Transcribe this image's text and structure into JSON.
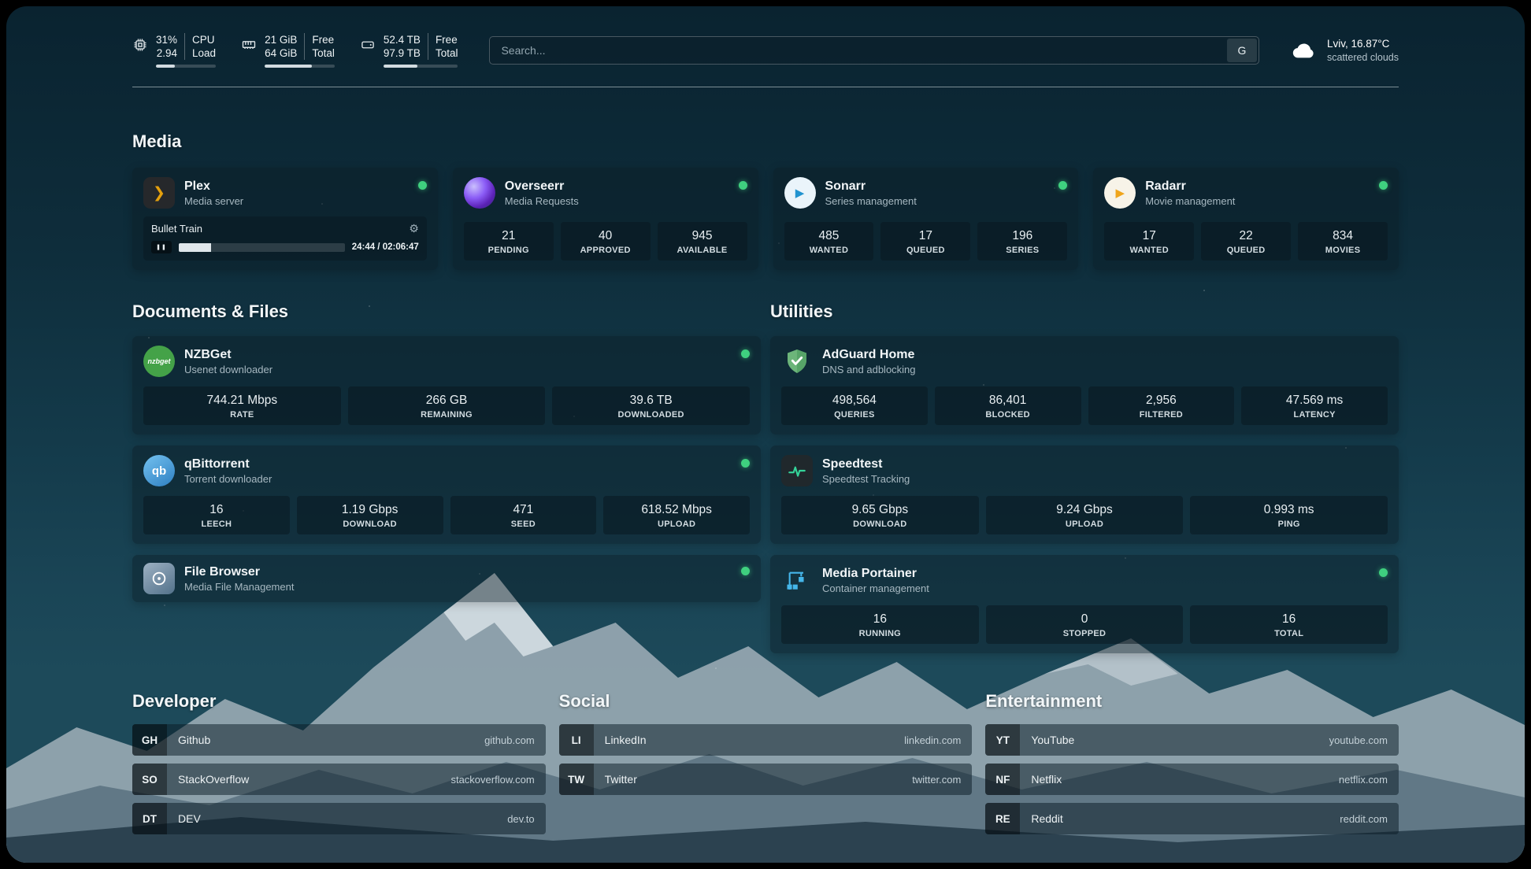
{
  "header": {
    "cpu": {
      "value1": "31%",
      "value2": "2.94",
      "label1": "CPU",
      "label2": "Load",
      "bar_pct": 31
    },
    "memory": {
      "value1": "21 GiB",
      "value2": "64 GiB",
      "label1": "Free",
      "label2": "Total",
      "bar_pct": 67
    },
    "disk": {
      "value1": "52.4 TB",
      "value2": "97.9 TB",
      "label1": "Free",
      "label2": "Total",
      "bar_pct": 46
    },
    "search": {
      "placeholder": "Search...",
      "button_label": "G"
    },
    "weather": {
      "location": "Lviv, 16.87°C",
      "condition": "scattered clouds"
    }
  },
  "icons": {
    "plex_chevron": "❯",
    "pause": "❚❚",
    "gear": "⚙",
    "sonarr_play": "▶",
    "radarr_play": "▶"
  },
  "media": {
    "title": "Media",
    "cards": {
      "plex": {
        "name": "Plex",
        "subtitle": "Media server",
        "now_playing": {
          "title": "Bullet Train",
          "time": "24:44 / 02:06:47",
          "progress_pct": 19.5
        }
      },
      "overseerr": {
        "name": "Overseerr",
        "subtitle": "Media Requests",
        "stats": [
          {
            "value": "21",
            "label": "PENDING"
          },
          {
            "value": "40",
            "label": "APPROVED"
          },
          {
            "value": "945",
            "label": "AVAILABLE"
          }
        ]
      },
      "sonarr": {
        "name": "Sonarr",
        "subtitle": "Series management",
        "stats": [
          {
            "value": "485",
            "label": "WANTED"
          },
          {
            "value": "17",
            "label": "QUEUED"
          },
          {
            "value": "196",
            "label": "SERIES"
          }
        ]
      },
      "radarr": {
        "name": "Radarr",
        "subtitle": "Movie management",
        "stats": [
          {
            "value": "17",
            "label": "WANTED"
          },
          {
            "value": "22",
            "label": "QUEUED"
          },
          {
            "value": "834",
            "label": "MOVIES"
          }
        ]
      }
    }
  },
  "documents": {
    "title": "Documents & Files",
    "cards": {
      "nzbget": {
        "name": "NZBGet",
        "subtitle": "Usenet downloader",
        "icon_text": "nzbget",
        "stats": [
          {
            "value": "744.21 Mbps",
            "label": "RATE"
          },
          {
            "value": "266 GB",
            "label": "REMAINING"
          },
          {
            "value": "39.6 TB",
            "label": "DOWNLOADED"
          }
        ]
      },
      "qbittorrent": {
        "name": "qBittorrent",
        "subtitle": "Torrent downloader",
        "icon_text": "qb",
        "stats": [
          {
            "value": "16",
            "label": "LEECH"
          },
          {
            "value": "1.19 Gbps",
            "label": "DOWNLOAD"
          },
          {
            "value": "471",
            "label": "SEED"
          },
          {
            "value": "618.52 Mbps",
            "label": "UPLOAD"
          }
        ]
      },
      "filebrowser": {
        "name": "File Browser",
        "subtitle": "Media File Management"
      }
    }
  },
  "utilities": {
    "title": "Utilities",
    "cards": {
      "adguard": {
        "name": "AdGuard Home",
        "subtitle": "DNS and adblocking",
        "stats": [
          {
            "value": "498,564",
            "label": "QUERIES"
          },
          {
            "value": "86,401",
            "label": "BLOCKED"
          },
          {
            "value": "2,956",
            "label": "FILTERED"
          },
          {
            "value": "47.569 ms",
            "label": "LATENCY"
          }
        ]
      },
      "speedtest": {
        "name": "Speedtest",
        "subtitle": "Speedtest Tracking",
        "stats": [
          {
            "value": "9.65 Gbps",
            "label": "DOWNLOAD"
          },
          {
            "value": "9.24 Gbps",
            "label": "UPLOAD"
          },
          {
            "value": "0.993 ms",
            "label": "PING"
          }
        ]
      },
      "portainer": {
        "name": "Media Portainer",
        "subtitle": "Container management",
        "stats": [
          {
            "value": "16",
            "label": "RUNNING"
          },
          {
            "value": "0",
            "label": "STOPPED"
          },
          {
            "value": "16",
            "label": "TOTAL"
          }
        ]
      }
    }
  },
  "bookmarks": {
    "developer": {
      "title": "Developer",
      "items": [
        {
          "abbr": "GH",
          "name": "Github",
          "url": "github.com"
        },
        {
          "abbr": "SO",
          "name": "StackOverflow",
          "url": "stackoverflow.com"
        },
        {
          "abbr": "DT",
          "name": "DEV",
          "url": "dev.to"
        }
      ]
    },
    "social": {
      "title": "Social",
      "items": [
        {
          "abbr": "LI",
          "name": "LinkedIn",
          "url": "linkedin.com"
        },
        {
          "abbr": "TW",
          "name": "Twitter",
          "url": "twitter.com"
        }
      ]
    },
    "entertainment": {
      "title": "Entertainment",
      "items": [
        {
          "abbr": "YT",
          "name": "YouTube",
          "url": "youtube.com"
        },
        {
          "abbr": "NF",
          "name": "Netflix",
          "url": "netflix.com"
        },
        {
          "abbr": "RE",
          "name": "Reddit",
          "url": "reddit.com"
        }
      ]
    }
  }
}
